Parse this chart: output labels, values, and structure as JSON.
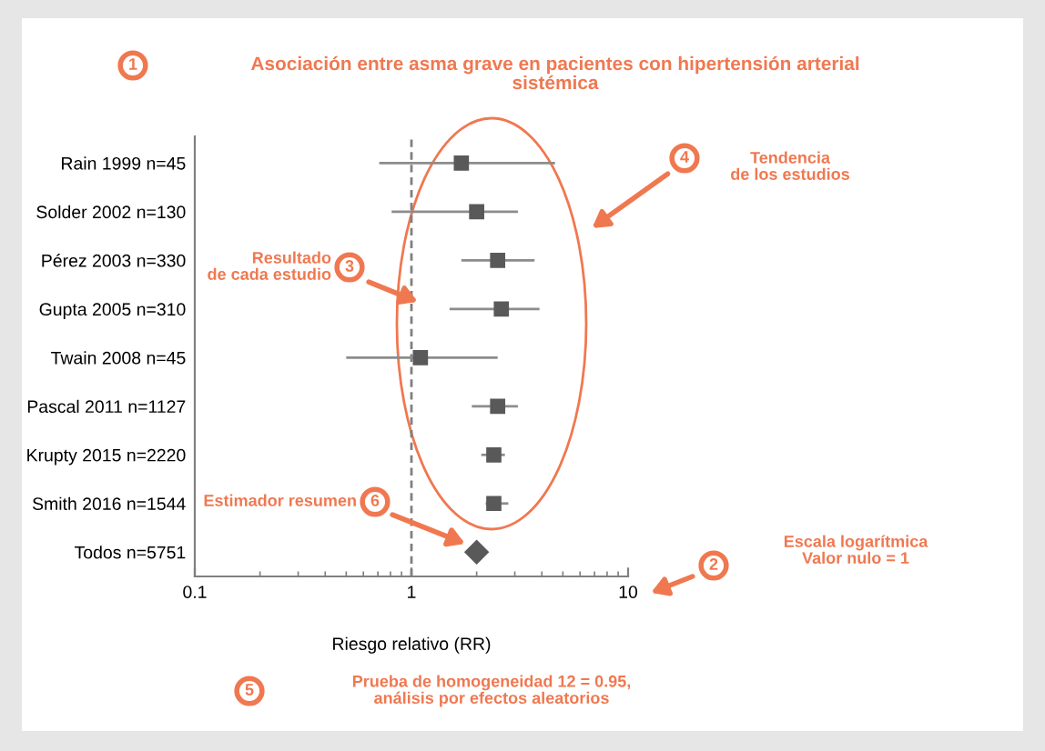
{
  "chart_data": {
    "type": "scatter",
    "orientation": "horizontal",
    "title": "Asociación entre asma grave en pacientes con hipertensión arterial\nsistémica",
    "xlabel": "Riesgo relativo (RR)",
    "categories": [
      "Rain 1999 n=45",
      "Solder 2002 n=130",
      "Pérez 2003 n=330",
      "Gupta 2005 n=310",
      "Twain 2008 n=45",
      "Pascal 2011 n=1127",
      "Krupty 2015 n=2220",
      "Smith 2016 n=1544",
      "Todos n=5751"
    ],
    "series": [
      {
        "color": "#595959",
        "marker": "square",
        "values": [
          1.7,
          2.0,
          2.5,
          2.6,
          1.1,
          2.5,
          2.4,
          2.4,
          null
        ],
        "errors": [
          [
            0.71,
            4.6
          ],
          [
            0.81,
            3.1
          ],
          [
            1.7,
            3.7
          ],
          [
            1.5,
            3.9
          ],
          [
            0.5,
            2.5
          ],
          [
            1.9,
            3.1
          ],
          [
            2.1,
            2.7
          ],
          [
            2.2,
            2.8
          ],
          null
        ]
      },
      {
        "color": "#595959",
        "marker": "diamond",
        "values": [
          null,
          null,
          null,
          null,
          null,
          null,
          null,
          null,
          2.0
        ]
      }
    ],
    "xlim": [
      0.1,
      10
    ],
    "xticks": [
      0.1,
      1,
      10
    ],
    "log": "x",
    "grid": false,
    "legend": false,
    "ref_lines": [
      {
        "axis": "x",
        "value": 1,
        "color": "#808080",
        "line_style": "dashed"
      }
    ],
    "annotations": [
      "1",
      "2",
      "Escala logarítmica\nValor nulo = 1",
      "3",
      "Resultado\nde cada estudio",
      "4",
      "Tendencia\nde los estudios",
      "5",
      "Prueba de homogeneidad 12 = 0.95,\nanálisis por efectos aleatorios",
      "6",
      "Estimador resumen"
    ]
  }
}
